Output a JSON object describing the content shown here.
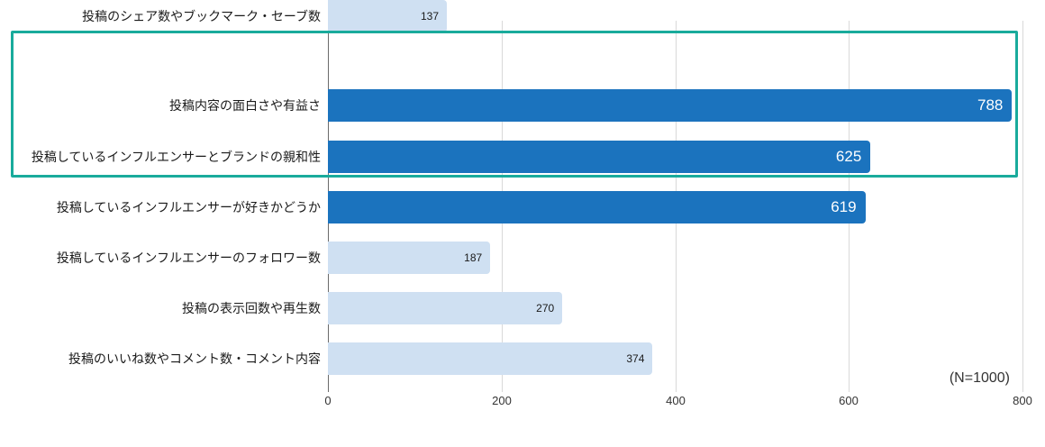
{
  "chart_data": {
    "type": "bar",
    "orientation": "horizontal",
    "title": "",
    "categories": [
      "投稿内容の面白さや有益さ",
      "投稿しているインフルエンサーとブランドの親和性",
      "投稿しているインフルエンサーが好きかどうか",
      "投稿しているインフルエンサーのフォロワー数",
      "投稿の表示回数や再生数",
      "投稿のいいね数やコメント数・コメント内容",
      "投稿のシェア数やブックマーク・セーブ数"
    ],
    "values": [
      788,
      625,
      619,
      187,
      270,
      374,
      137
    ],
    "highlighted_top_rows": 3,
    "xlim": [
      0,
      800
    ],
    "x_ticks": [
      0,
      200,
      400,
      600,
      800
    ],
    "x_tick_labels": [
      "0",
      "200",
      "400",
      "600",
      "800"
    ],
    "grid": "vertical-only",
    "legend": "none",
    "note": "(N=1000)",
    "colors": {
      "bar_primary": "#1b73be",
      "bar_secondary": "#cfe0f2",
      "highlight_border": "#19ab9c",
      "gridline": "#d9d9d9",
      "axis_line": "#6b6b6b",
      "value_on_primary": "#ffffff",
      "value_on_secondary": "#1a1a1a"
    }
  }
}
